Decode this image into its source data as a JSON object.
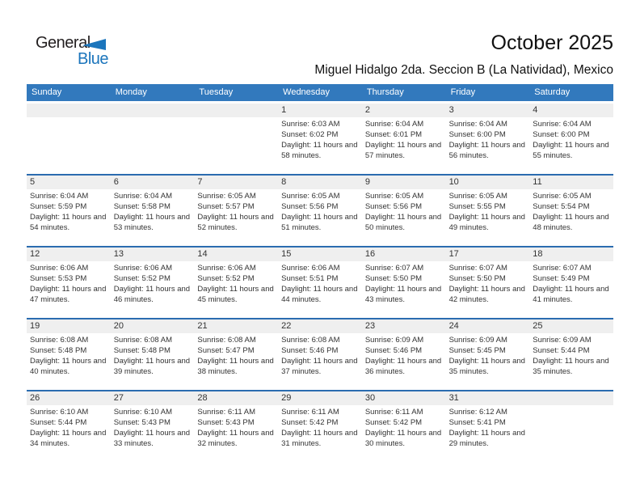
{
  "logo": {
    "general": "General",
    "blue": "Blue"
  },
  "header": {
    "title": "October 2025",
    "subtitle": "Miguel Hidalgo 2da. Seccion B (La Natividad), Mexico"
  },
  "colors": {
    "weekday_header_bg": "#3279bd",
    "week_separator": "#2b6cb0",
    "day_number_band_bg": "#efefef",
    "logo_blue": "#1b75bc",
    "text": "#333333"
  },
  "weekdays": [
    "Sunday",
    "Monday",
    "Tuesday",
    "Wednesday",
    "Thursday",
    "Friday",
    "Saturday"
  ],
  "weeks": [
    [
      {},
      {},
      {},
      {
        "day": "1",
        "sunrise": "Sunrise: 6:03 AM",
        "sunset": "Sunset: 6:02 PM",
        "daylight": "Daylight: 11 hours and 58 minutes."
      },
      {
        "day": "2",
        "sunrise": "Sunrise: 6:04 AM",
        "sunset": "Sunset: 6:01 PM",
        "daylight": "Daylight: 11 hours and 57 minutes."
      },
      {
        "day": "3",
        "sunrise": "Sunrise: 6:04 AM",
        "sunset": "Sunset: 6:00 PM",
        "daylight": "Daylight: 11 hours and 56 minutes."
      },
      {
        "day": "4",
        "sunrise": "Sunrise: 6:04 AM",
        "sunset": "Sunset: 6:00 PM",
        "daylight": "Daylight: 11 hours and 55 minutes."
      }
    ],
    [
      {
        "day": "5",
        "sunrise": "Sunrise: 6:04 AM",
        "sunset": "Sunset: 5:59 PM",
        "daylight": "Daylight: 11 hours and 54 minutes."
      },
      {
        "day": "6",
        "sunrise": "Sunrise: 6:04 AM",
        "sunset": "Sunset: 5:58 PM",
        "daylight": "Daylight: 11 hours and 53 minutes."
      },
      {
        "day": "7",
        "sunrise": "Sunrise: 6:05 AM",
        "sunset": "Sunset: 5:57 PM",
        "daylight": "Daylight: 11 hours and 52 minutes."
      },
      {
        "day": "8",
        "sunrise": "Sunrise: 6:05 AM",
        "sunset": "Sunset: 5:56 PM",
        "daylight": "Daylight: 11 hours and 51 minutes."
      },
      {
        "day": "9",
        "sunrise": "Sunrise: 6:05 AM",
        "sunset": "Sunset: 5:56 PM",
        "daylight": "Daylight: 11 hours and 50 minutes."
      },
      {
        "day": "10",
        "sunrise": "Sunrise: 6:05 AM",
        "sunset": "Sunset: 5:55 PM",
        "daylight": "Daylight: 11 hours and 49 minutes."
      },
      {
        "day": "11",
        "sunrise": "Sunrise: 6:05 AM",
        "sunset": "Sunset: 5:54 PM",
        "daylight": "Daylight: 11 hours and 48 minutes."
      }
    ],
    [
      {
        "day": "12",
        "sunrise": "Sunrise: 6:06 AM",
        "sunset": "Sunset: 5:53 PM",
        "daylight": "Daylight: 11 hours and 47 minutes."
      },
      {
        "day": "13",
        "sunrise": "Sunrise: 6:06 AM",
        "sunset": "Sunset: 5:52 PM",
        "daylight": "Daylight: 11 hours and 46 minutes."
      },
      {
        "day": "14",
        "sunrise": "Sunrise: 6:06 AM",
        "sunset": "Sunset: 5:52 PM",
        "daylight": "Daylight: 11 hours and 45 minutes."
      },
      {
        "day": "15",
        "sunrise": "Sunrise: 6:06 AM",
        "sunset": "Sunset: 5:51 PM",
        "daylight": "Daylight: 11 hours and 44 minutes."
      },
      {
        "day": "16",
        "sunrise": "Sunrise: 6:07 AM",
        "sunset": "Sunset: 5:50 PM",
        "daylight": "Daylight: 11 hours and 43 minutes."
      },
      {
        "day": "17",
        "sunrise": "Sunrise: 6:07 AM",
        "sunset": "Sunset: 5:50 PM",
        "daylight": "Daylight: 11 hours and 42 minutes."
      },
      {
        "day": "18",
        "sunrise": "Sunrise: 6:07 AM",
        "sunset": "Sunset: 5:49 PM",
        "daylight": "Daylight: 11 hours and 41 minutes."
      }
    ],
    [
      {
        "day": "19",
        "sunrise": "Sunrise: 6:08 AM",
        "sunset": "Sunset: 5:48 PM",
        "daylight": "Daylight: 11 hours and 40 minutes."
      },
      {
        "day": "20",
        "sunrise": "Sunrise: 6:08 AM",
        "sunset": "Sunset: 5:48 PM",
        "daylight": "Daylight: 11 hours and 39 minutes."
      },
      {
        "day": "21",
        "sunrise": "Sunrise: 6:08 AM",
        "sunset": "Sunset: 5:47 PM",
        "daylight": "Daylight: 11 hours and 38 minutes."
      },
      {
        "day": "22",
        "sunrise": "Sunrise: 6:08 AM",
        "sunset": "Sunset: 5:46 PM",
        "daylight": "Daylight: 11 hours and 37 minutes."
      },
      {
        "day": "23",
        "sunrise": "Sunrise: 6:09 AM",
        "sunset": "Sunset: 5:46 PM",
        "daylight": "Daylight: 11 hours and 36 minutes."
      },
      {
        "day": "24",
        "sunrise": "Sunrise: 6:09 AM",
        "sunset": "Sunset: 5:45 PM",
        "daylight": "Daylight: 11 hours and 35 minutes."
      },
      {
        "day": "25",
        "sunrise": "Sunrise: 6:09 AM",
        "sunset": "Sunset: 5:44 PM",
        "daylight": "Daylight: 11 hours and 35 minutes."
      }
    ],
    [
      {
        "day": "26",
        "sunrise": "Sunrise: 6:10 AM",
        "sunset": "Sunset: 5:44 PM",
        "daylight": "Daylight: 11 hours and 34 minutes."
      },
      {
        "day": "27",
        "sunrise": "Sunrise: 6:10 AM",
        "sunset": "Sunset: 5:43 PM",
        "daylight": "Daylight: 11 hours and 33 minutes."
      },
      {
        "day": "28",
        "sunrise": "Sunrise: 6:11 AM",
        "sunset": "Sunset: 5:43 PM",
        "daylight": "Daylight: 11 hours and 32 minutes."
      },
      {
        "day": "29",
        "sunrise": "Sunrise: 6:11 AM",
        "sunset": "Sunset: 5:42 PM",
        "daylight": "Daylight: 11 hours and 31 minutes."
      },
      {
        "day": "30",
        "sunrise": "Sunrise: 6:11 AM",
        "sunset": "Sunset: 5:42 PM",
        "daylight": "Daylight: 11 hours and 30 minutes."
      },
      {
        "day": "31",
        "sunrise": "Sunrise: 6:12 AM",
        "sunset": "Sunset: 5:41 PM",
        "daylight": "Daylight: 11 hours and 29 minutes."
      },
      {}
    ]
  ]
}
